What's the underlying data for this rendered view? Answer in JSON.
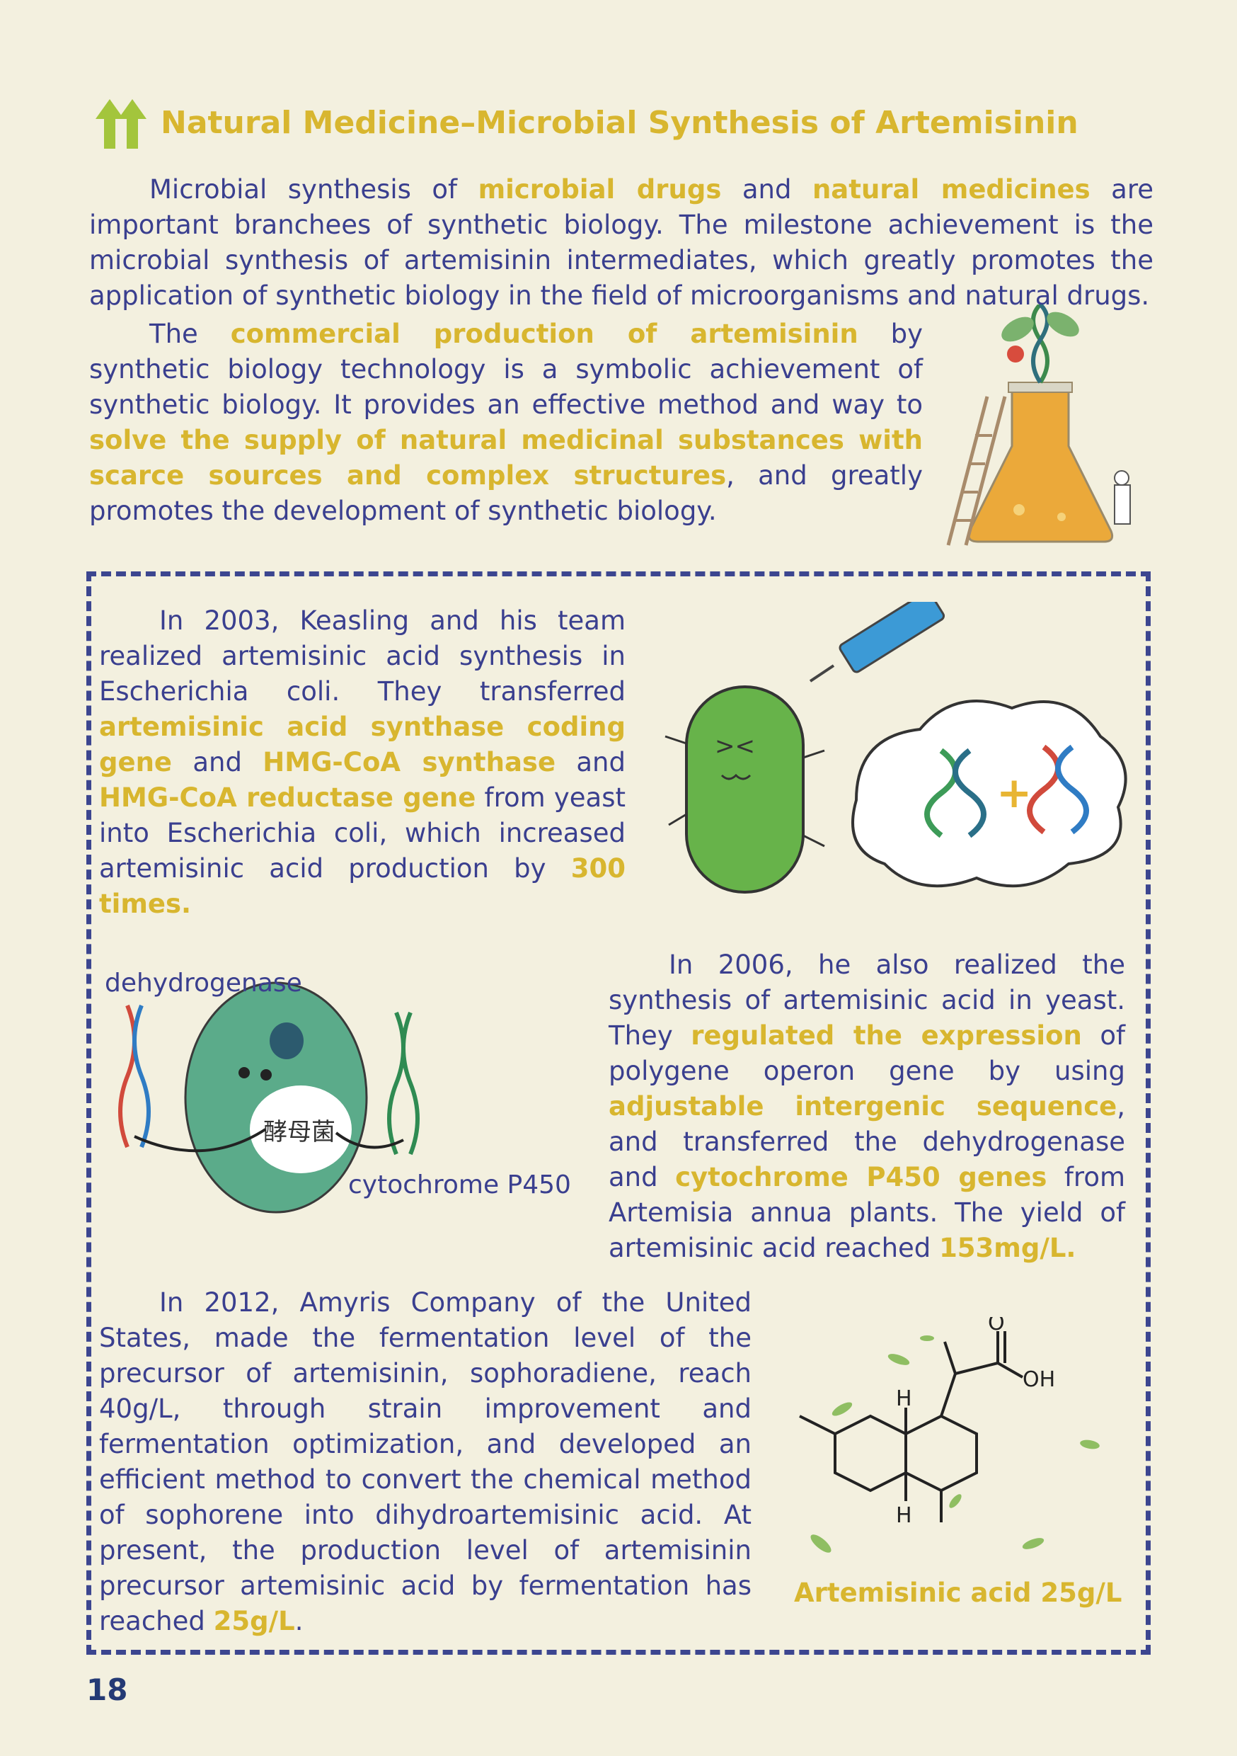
{
  "title": "Natural Medicine–Microbial Synthesis of Artemisinin",
  "intro": {
    "p1": [
      {
        "t": "Microbial synthesis of ",
        "h": false
      },
      {
        "t": "microbial drugs",
        "h": true
      },
      {
        "t": " and ",
        "h": false
      },
      {
        "t": "natural medicines",
        "h": true
      },
      {
        "t": " are important branchees of synthetic biology. The milestone achievement is the microbial synthesis of artemisinin intermediates, which greatly promotes the application of synthetic biology in the field of microorganisms and natural drugs.",
        "h": false
      }
    ],
    "p2": [
      {
        "t": "The ",
        "h": false
      },
      {
        "t": "commercial production of artemisinin",
        "h": true
      },
      {
        "t": " by synthetic biology technology is a symbolic achievement of synthetic biology. It provides an effective method and way to ",
        "h": false
      },
      {
        "t": "solve the supply of natural medicinal substances with scarce sources and complex structures",
        "h": true
      },
      {
        "t": ", and greatly promotes the development of synthetic biology.",
        "h": false
      }
    ]
  },
  "box": {
    "p2003": [
      {
        "t": "In 2003, Keasling and his team realized artemisinic acid synthesis in Escherichia coli. They transferred ",
        "h": false
      },
      {
        "t": "artemisinic acid synthase coding gene",
        "h": true
      },
      {
        "t": " and ",
        "h": false
      },
      {
        "t": "HMG-CoA synthase",
        "h": true
      },
      {
        "t": " and ",
        "h": false
      },
      {
        "t": "HMG-CoA reductase gene",
        "h": true
      },
      {
        "t": " from yeast into Escherichia coli, which increased artemisinic acid production by ",
        "h": false
      },
      {
        "t": "300 times.",
        "h": true
      }
    ],
    "p2006": [
      {
        "t": "In 2006, he also realized the synthesis of artemisinic acid in yeast. They ",
        "h": false
      },
      {
        "t": "regulated the expression",
        "h": true
      },
      {
        "t": " of polygene operon gene by using ",
        "h": false
      },
      {
        "t": "adjustable intergenic sequence",
        "h": true
      },
      {
        "t": ", and transferred the dehydrogenase and ",
        "h": false
      },
      {
        "t": "cytochrome P450 genes",
        "h": true
      },
      {
        "t": " from Artemisia annua plants. The yield of artemisinic acid reached ",
        "h": false
      },
      {
        "t": "153mg/L.",
        "h": true
      }
    ],
    "p2012": [
      {
        "t": "In 2012, Amyris Company of the United States, made the fermentation level of the precursor of artemisinin, sophoradiene, reach 40g/L, through strain improvement and fermentation optimization, and developed an efficient method to convert the chemical method of sophorene into dihydroartemisinic acid. At present, the production level of artemisinin precursor artemisinic acid by fermentation has reached ",
        "h": false
      },
      {
        "t": "25g/L",
        "h": true
      },
      {
        "t": ".",
        "h": false
      }
    ],
    "labels": {
      "dehydrogenase": "dehydrogenase",
      "cytochrome": "cytochrome P450",
      "yeast_cn": "酵母菌",
      "mol_O": "O",
      "mol_OH": "OH",
      "mol_H": "H"
    },
    "molecule_caption": "Artemisinic acid 25g/L"
  },
  "page_number": "18",
  "colors": {
    "background": "#f3f0df",
    "text": "#3a3f8f",
    "highlight": "#d8b62f",
    "border": "#3c4690",
    "page_number": "#243a75"
  },
  "icons": [
    "up-arrow-icon",
    "flask-icon",
    "bacteria-icon",
    "syringe-icon",
    "dna-icon",
    "yeast-cell-icon",
    "molecule-icon",
    "leaf-icon"
  ]
}
